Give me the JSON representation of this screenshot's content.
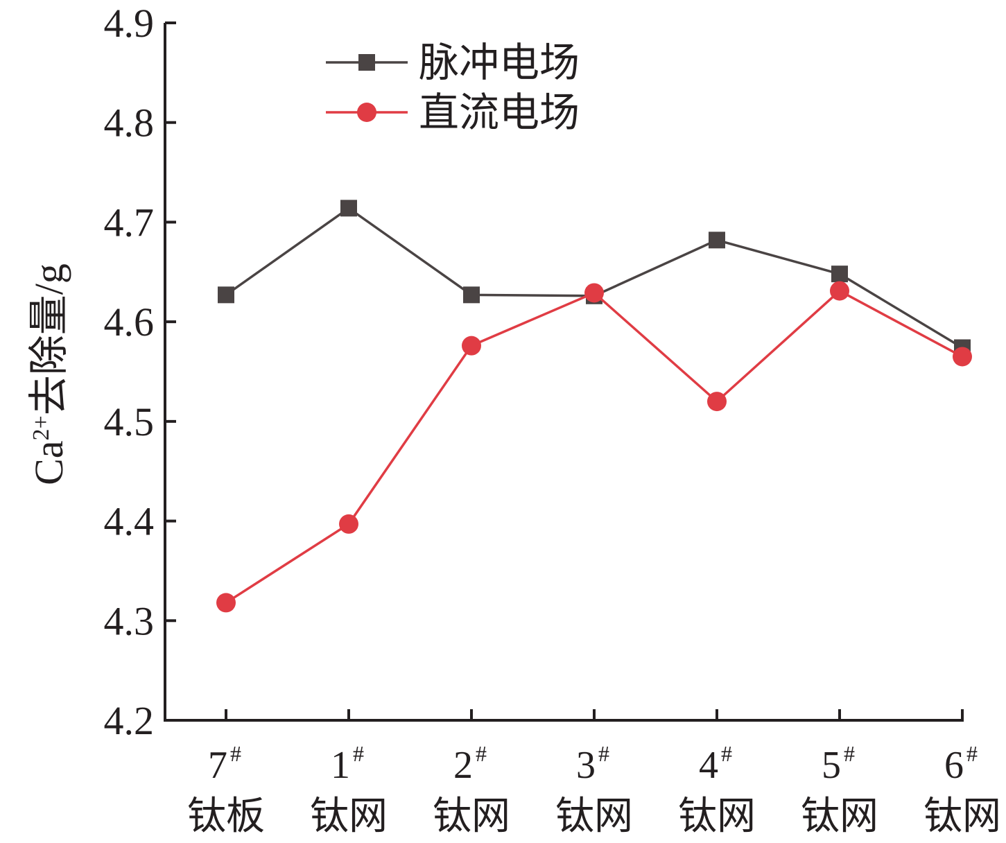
{
  "chart_data": {
    "type": "line",
    "ylabel": {
      "base": "Ca",
      "sup": "2+",
      "rest": "去除量/g"
    },
    "ylim": [
      4.2,
      4.9
    ],
    "yticks": [
      "4.2",
      "4.3",
      "4.4",
      "4.5",
      "4.6",
      "4.7",
      "4.8",
      "4.9"
    ],
    "categories": [
      {
        "num": "7",
        "sup": "#",
        "label": "钛板"
      },
      {
        "num": "1",
        "sup": "#",
        "label": "钛网"
      },
      {
        "num": "2",
        "sup": "#",
        "label": "钛网"
      },
      {
        "num": "3",
        "sup": "#",
        "label": "钛网"
      },
      {
        "num": "4",
        "sup": "#",
        "label": "钛网"
      },
      {
        "num": "5",
        "sup": "#",
        "label": "钛网"
      },
      {
        "num": "6",
        "sup": "#",
        "label": "钛网"
      }
    ],
    "series": [
      {
        "name": "脉冲电场",
        "color": "#4a4444",
        "marker": "square",
        "values": [
          4.627,
          4.714,
          4.627,
          4.626,
          4.682,
          4.648,
          4.574
        ]
      },
      {
        "name": "直流电场",
        "color": "#e03c44",
        "marker": "circle",
        "values": [
          4.318,
          4.397,
          4.576,
          4.629,
          4.52,
          4.631,
          4.565
        ]
      }
    ],
    "legend_position": "top-center",
    "grid": false
  }
}
